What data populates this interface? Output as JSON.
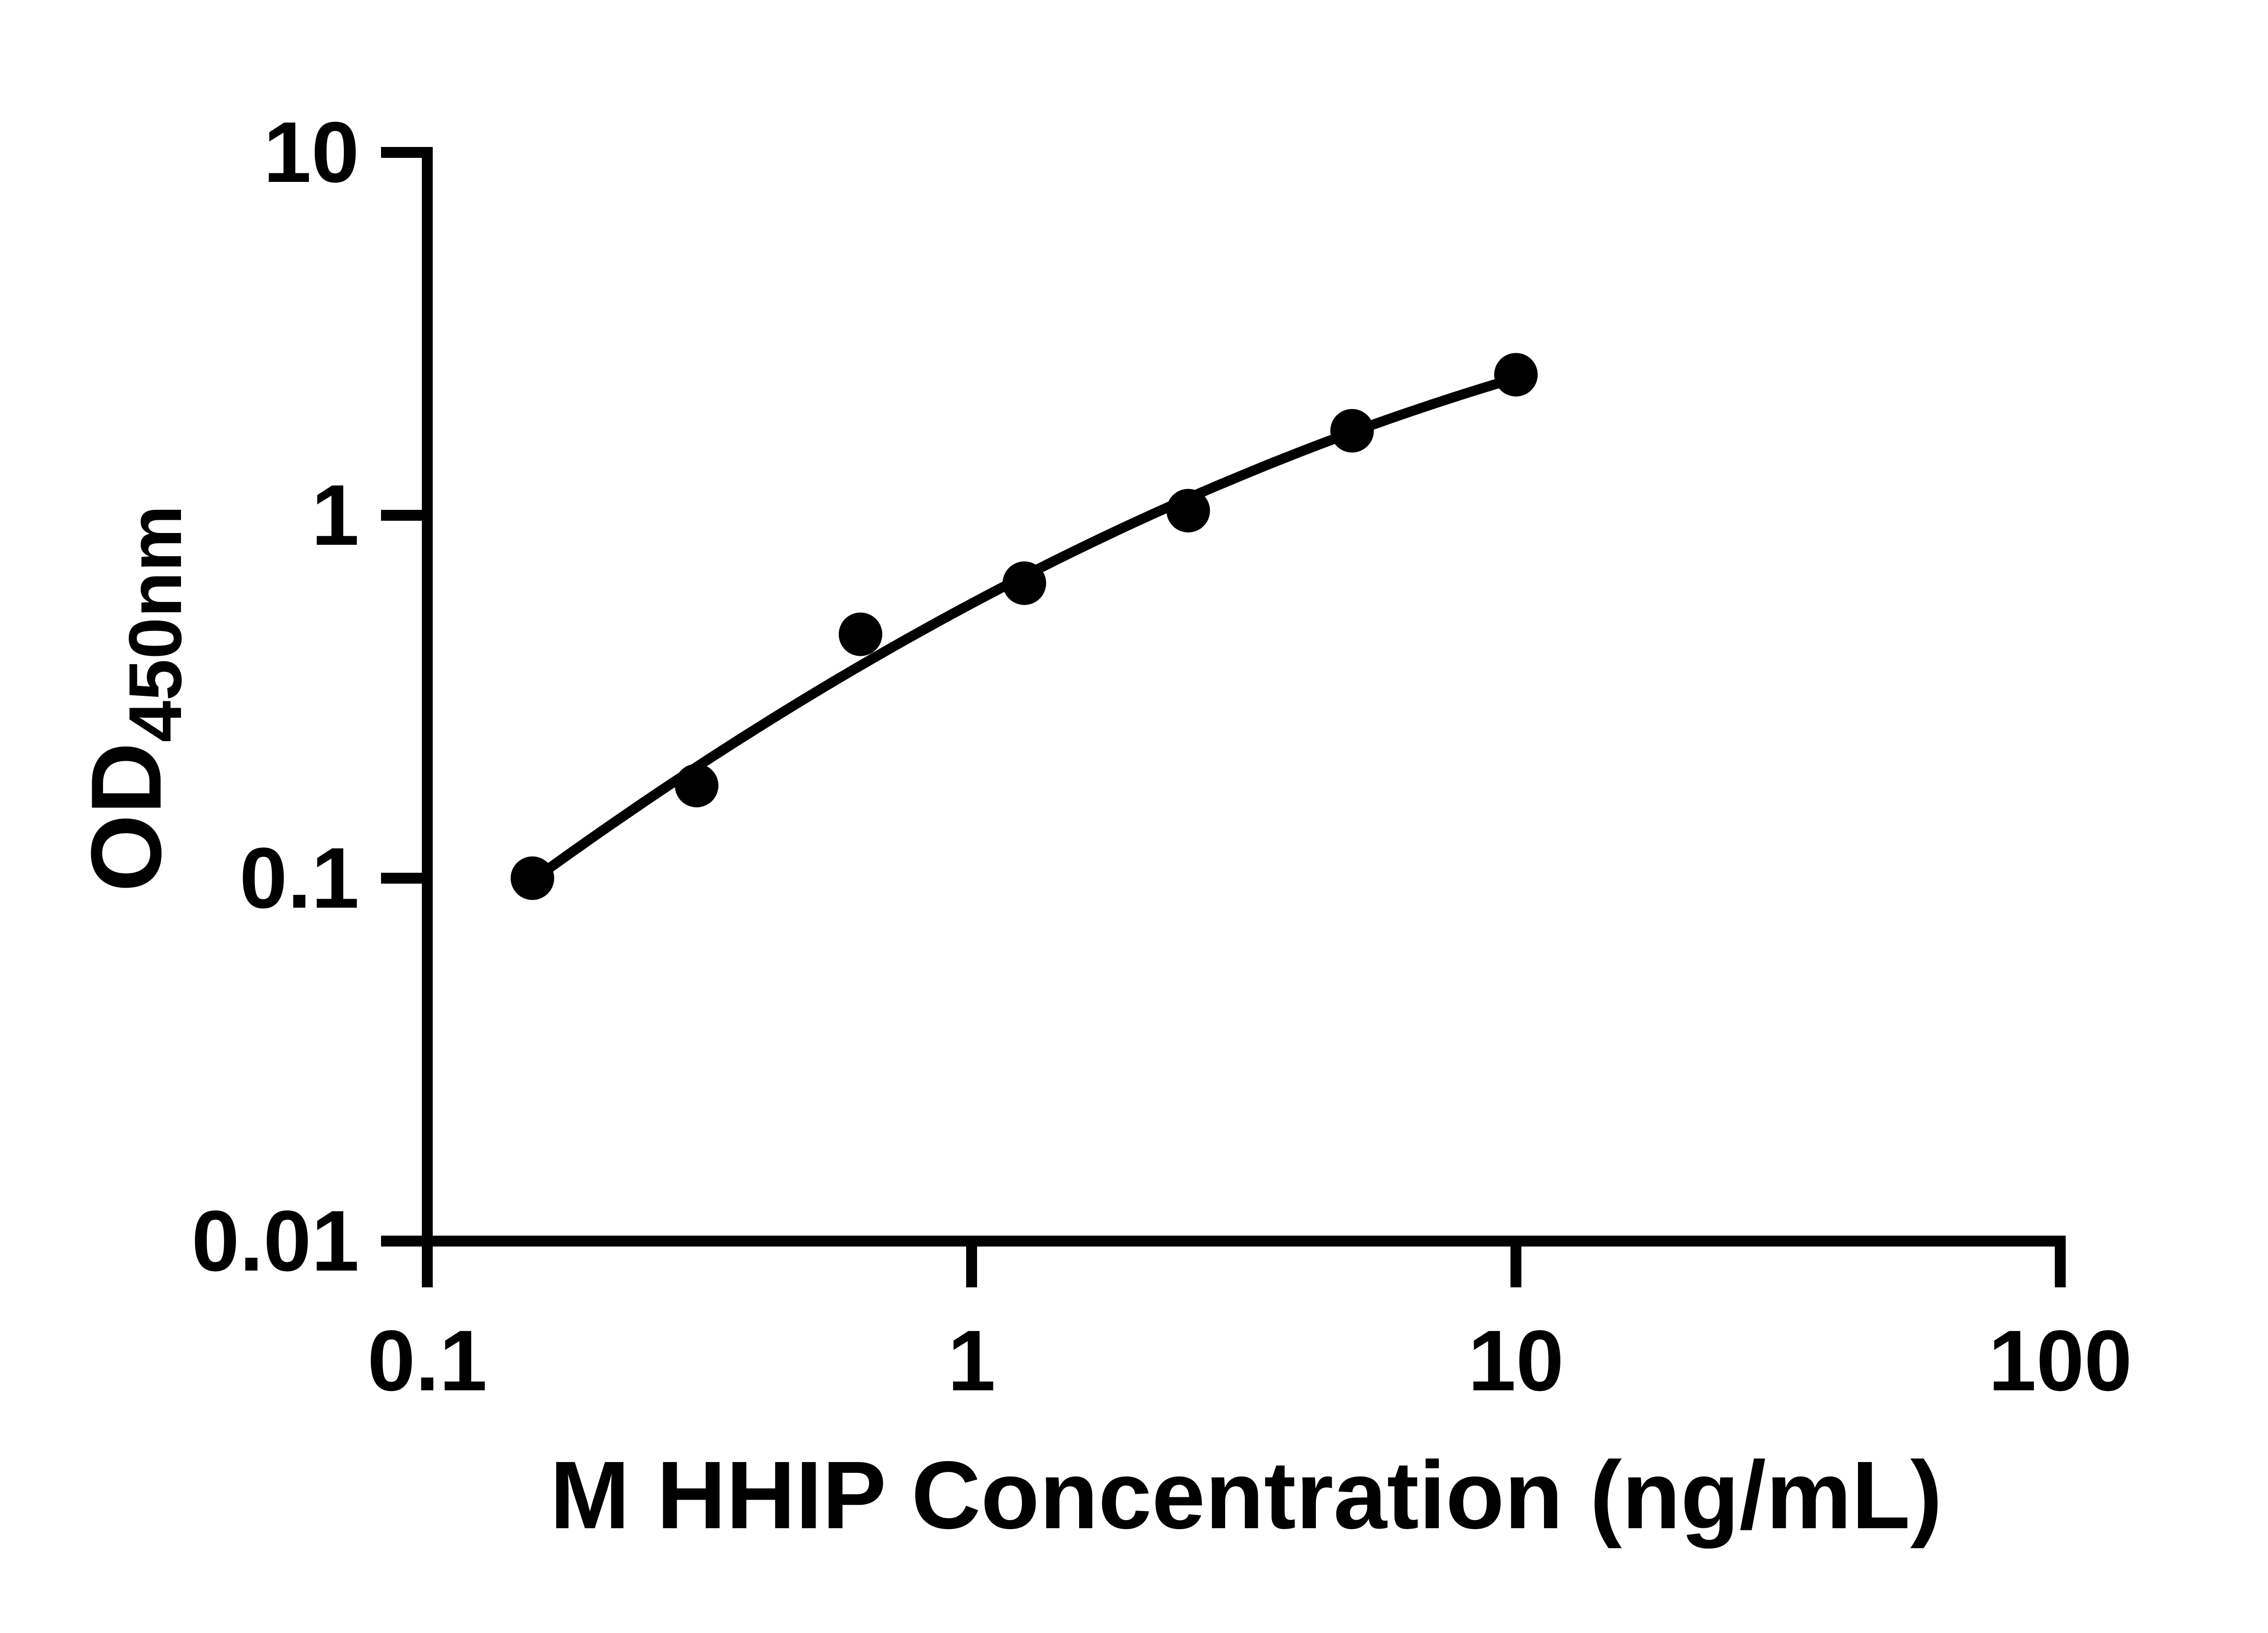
{
  "chart_data": {
    "type": "scatter",
    "xlabel": "M HHIP Concentration (ng/mL)",
    "ylabel_main": "OD",
    "ylabel_sub": "450nm",
    "xscale": "log",
    "yscale": "log",
    "xlim": [
      0.1,
      100
    ],
    "ylim": [
      0.01,
      10
    ],
    "grid": false,
    "legend": false,
    "axis_color": "#000000",
    "x_ticks": [
      {
        "value": 0.1,
        "label": "0.1"
      },
      {
        "value": 1,
        "label": "1"
      },
      {
        "value": 10,
        "label": "10"
      },
      {
        "value": 100,
        "label": "100"
      }
    ],
    "y_ticks": [
      {
        "value": 10,
        "label": "10"
      },
      {
        "value": 1,
        "label": "1"
      },
      {
        "value": 0.1,
        "label": "0.1"
      },
      {
        "value": 0.01,
        "label": "0.01"
      }
    ],
    "series": [
      {
        "name": "standard-curve-points",
        "marker": "circle",
        "color": "#000000",
        "points": [
          {
            "x": 0.156,
            "y": 0.1
          },
          {
            "x": 0.3125,
            "y": 0.18
          },
          {
            "x": 0.625,
            "y": 0.47
          },
          {
            "x": 1.25,
            "y": 0.65
          },
          {
            "x": 2.5,
            "y": 1.03
          },
          {
            "x": 5,
            "y": 1.71
          },
          {
            "x": 10,
            "y": 2.44
          }
        ]
      }
    ],
    "fit_curve": {
      "type": "quadratic-loglog",
      "color": "#000000",
      "x_start": 0.151,
      "x_end": 10
    }
  }
}
